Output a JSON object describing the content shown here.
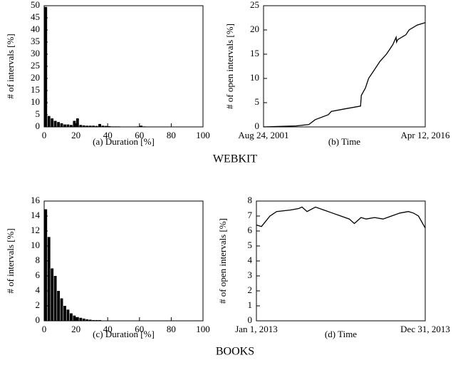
{
  "group_labels": [
    "WEBKIT",
    "BOOKS"
  ],
  "chart_data": [
    {
      "type": "histogram",
      "xlabel": "(a) Duration [%]",
      "ylabel": "# of intervals [%]",
      "color": "#000000",
      "bins": [
        0,
        2,
        4,
        6,
        8,
        10,
        12,
        14,
        16,
        18,
        20,
        22,
        24,
        26,
        28,
        30,
        32,
        34,
        36,
        38,
        40,
        42,
        44,
        46,
        48,
        50,
        52,
        54,
        56,
        58,
        60,
        62,
        64,
        66,
        68,
        70,
        72,
        74,
        76,
        78,
        80,
        82,
        84,
        86,
        88,
        90,
        92,
        94,
        96,
        98,
        100
      ],
      "values": [
        49.5,
        4.5,
        3.5,
        2.5,
        2,
        1.5,
        1,
        1,
        0.8,
        2.5,
        3.5,
        0.8,
        0.6,
        0.5,
        0.5,
        0.5,
        0.4,
        1.2,
        0.5,
        0.4,
        0.3,
        0.2,
        0.2,
        0.2,
        0.1,
        0.1,
        0.1,
        0.1,
        0.1,
        0.2,
        0.5,
        0.2,
        0.1,
        0.1,
        0.1,
        0.1,
        0.1,
        0.1,
        0.1,
        0.1,
        0.1,
        0.1,
        0.1,
        0.1,
        0.1,
        0.1,
        0.1,
        0.1,
        0.1,
        0.1
      ],
      "xlim": [
        0,
        100
      ],
      "xticks": [
        0,
        20,
        40,
        60,
        80,
        100
      ],
      "ylim": [
        0,
        50
      ],
      "yticks": [
        0,
        5,
        10,
        15,
        20,
        25,
        30,
        35,
        40,
        45,
        50
      ]
    },
    {
      "type": "line",
      "xlabel": "(b) Time",
      "ylabel": "# of open intervals [%]",
      "color": "#000000",
      "x": [
        0,
        20,
        28,
        32,
        40,
        42,
        50,
        55,
        60,
        60.5,
        63,
        65,
        68,
        72,
        76,
        78,
        80,
        82,
        82.3,
        83,
        88,
        90,
        95,
        100
      ],
      "values": [
        0,
        0.2,
        0.5,
        1.5,
        2.5,
        3.2,
        3.7,
        4,
        4.3,
        6.5,
        8,
        10,
        11.5,
        13.5,
        15,
        16,
        17,
        18.5,
        17.5,
        18,
        19,
        20,
        21,
        21.5
      ],
      "xlim": [
        0,
        100
      ],
      "xticks": [
        {
          "value": 0,
          "label": "Aug 24, 2001"
        },
        {
          "value": 100,
          "label": "Apr 12, 2016"
        }
      ],
      "ylim": [
        0,
        25
      ],
      "yticks": [
        0,
        5,
        10,
        15,
        20,
        25
      ]
    },
    {
      "type": "histogram",
      "xlabel": "(c) Duration [%]",
      "ylabel": "# of intervals [%]",
      "color": "#000000",
      "bins": [
        0,
        2,
        4,
        6,
        8,
        10,
        12,
        14,
        16,
        18,
        20,
        22,
        24,
        26,
        28,
        30,
        32,
        34,
        36,
        38,
        40,
        42,
        44,
        46,
        48,
        50,
        52,
        54,
        56,
        58,
        60,
        62,
        64,
        66,
        68,
        70,
        72,
        74,
        76,
        78,
        80,
        82,
        84,
        86,
        88,
        90,
        92,
        94,
        96,
        98,
        100
      ],
      "values": [
        14.9,
        11.2,
        7,
        6,
        4,
        3,
        2,
        1.5,
        1,
        0.7,
        0.5,
        0.4,
        0.3,
        0.2,
        0.15,
        0.1,
        0.1,
        0.1,
        0.05,
        0.05,
        0.05,
        0.05,
        0.05,
        0.05,
        0.05,
        0.05,
        0.05,
        0.05,
        0.05,
        0.05,
        0.05,
        0.05,
        0.05,
        0.05,
        0.05,
        0.05,
        0.05,
        0.05,
        0.05,
        0.05,
        0.05,
        0.05,
        0.05,
        0.05,
        0.05,
        0.05,
        0.05,
        0.05,
        0.05,
        0.05
      ],
      "xlim": [
        0,
        100
      ],
      "xticks": [
        0,
        20,
        40,
        60,
        80,
        100
      ],
      "ylim": [
        0,
        16
      ],
      "yticks": [
        0,
        2,
        4,
        6,
        8,
        10,
        12,
        14,
        16
      ]
    },
    {
      "type": "line",
      "xlabel": "(d) Time",
      "ylabel": "# of open intervals [%]",
      "color": "#000000",
      "x": [
        0,
        3,
        8,
        12,
        20,
        25,
        27,
        30,
        35,
        40,
        45,
        50,
        55,
        58,
        62,
        65,
        70,
        75,
        80,
        85,
        90,
        93,
        96,
        100
      ],
      "values": [
        6.4,
        6.3,
        7,
        7.3,
        7.4,
        7.5,
        7.6,
        7.3,
        7.6,
        7.4,
        7.2,
        7,
        6.8,
        6.5,
        6.9,
        6.8,
        6.9,
        6.8,
        7,
        7.2,
        7.3,
        7.2,
        7,
        6.2
      ],
      "xlim": [
        0,
        100
      ],
      "xticks": [
        {
          "value": 0,
          "label": "Jan 1, 2013"
        },
        {
          "value": 100,
          "label": "Dec 31, 2013"
        }
      ],
      "ylim": [
        0,
        8
      ],
      "yticks": [
        0,
        1,
        2,
        3,
        4,
        5,
        6,
        7,
        8
      ]
    }
  ]
}
